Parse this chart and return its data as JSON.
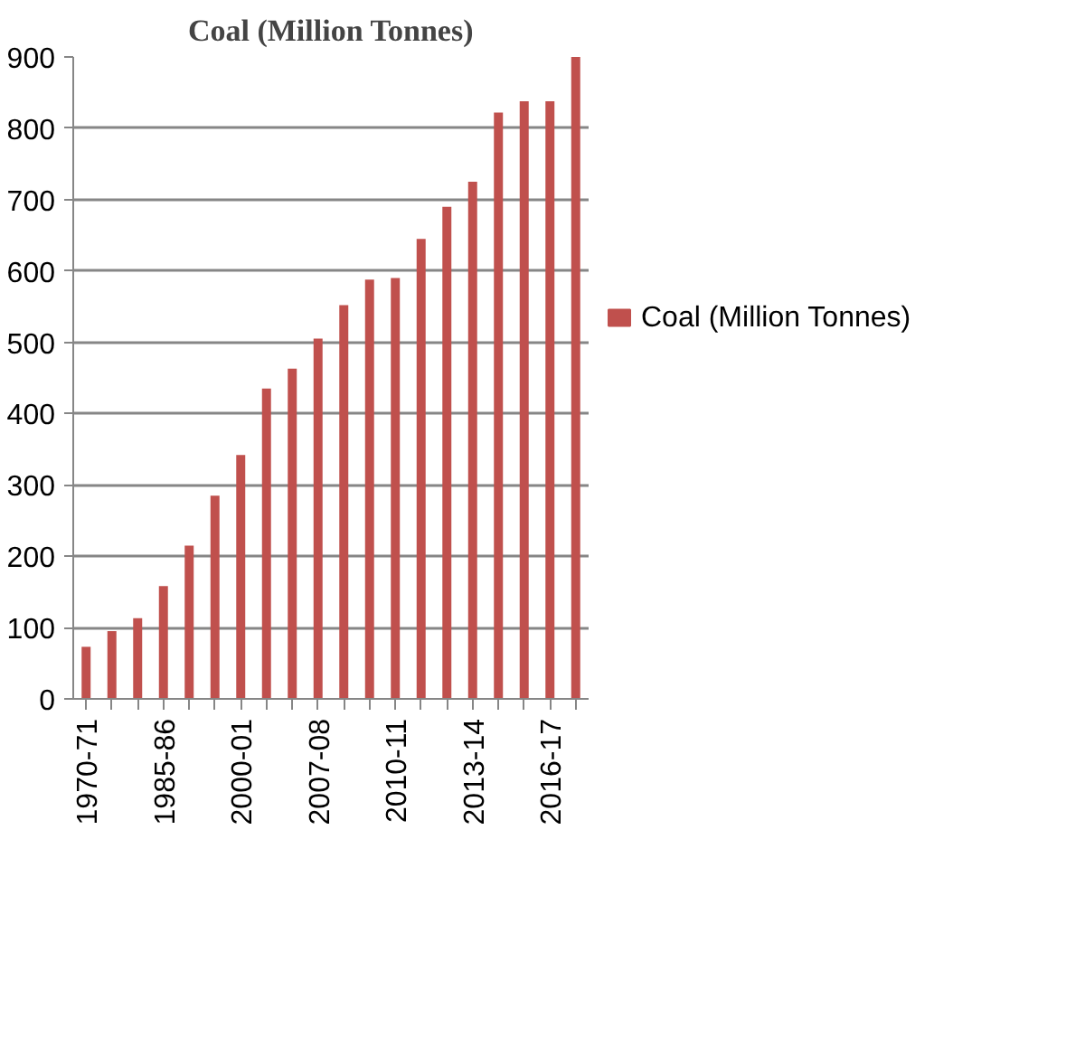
{
  "chart_data": {
    "type": "bar",
    "title": "Coal (Million Tonnes)",
    "categories": [
      "1970-71",
      null,
      null,
      "1985-86",
      null,
      null,
      "2000-01",
      null,
      null,
      "2007-08",
      null,
      null,
      "2010-11",
      null,
      null,
      "2013-14",
      null,
      null,
      "2016-17",
      null
    ],
    "series": [
      {
        "name": "Coal (Million Tonnes)",
        "color": "#c0504d",
        "values": [
          73,
          95,
          113,
          158,
          215,
          285,
          342,
          435,
          463,
          505,
          552,
          588,
          590,
          645,
          690,
          725,
          822,
          838,
          838,
          900
        ]
      }
    ],
    "ylim": [
      0,
      900
    ],
    "yticks": [
      0,
      100,
      200,
      300,
      400,
      500,
      600,
      700,
      800,
      900
    ],
    "grid": "y",
    "legend": "right"
  }
}
